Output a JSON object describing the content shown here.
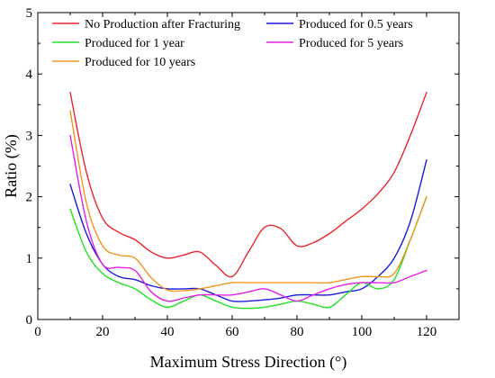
{
  "chart_data": {
    "type": "line",
    "xlabel": "Maximum Stress Direction (°)",
    "ylabel": "Ratio (%)",
    "xlim": [
      0,
      130
    ],
    "ylim": [
      0,
      5
    ],
    "xticks": [
      0,
      20,
      40,
      60,
      80,
      100,
      120
    ],
    "yticks": [
      0,
      1,
      2,
      3,
      4,
      5
    ],
    "legend_position": "top",
    "grid": false,
    "series": [
      {
        "name": "No Production after Fracturing",
        "color": "#e8262a",
        "x": [
          10,
          15,
          20,
          25,
          30,
          35,
          40,
          45,
          50,
          55,
          60,
          65,
          70,
          75,
          80,
          85,
          90,
          95,
          100,
          105,
          110,
          115,
          120
        ],
        "y": [
          3.7,
          2.4,
          1.65,
          1.42,
          1.3,
          1.1,
          1.0,
          1.05,
          1.1,
          0.88,
          0.7,
          1.1,
          1.5,
          1.48,
          1.2,
          1.25,
          1.4,
          1.6,
          1.8,
          2.05,
          2.4,
          3.0,
          3.7
        ]
      },
      {
        "name": "Produced for 0.5 years",
        "color": "#1a1adb",
        "x": [
          10,
          15,
          20,
          25,
          30,
          35,
          40,
          45,
          50,
          55,
          60,
          65,
          70,
          75,
          80,
          85,
          90,
          95,
          100,
          105,
          110,
          115,
          120
        ],
        "y": [
          2.2,
          1.4,
          0.9,
          0.7,
          0.65,
          0.55,
          0.5,
          0.5,
          0.5,
          0.4,
          0.3,
          0.3,
          0.32,
          0.35,
          0.4,
          0.4,
          0.4,
          0.45,
          0.5,
          0.7,
          1.0,
          1.6,
          2.6
        ]
      },
      {
        "name": "Produced for 1 year",
        "color": "#22e022",
        "x": [
          10,
          15,
          20,
          25,
          30,
          35,
          40,
          45,
          50,
          55,
          60,
          65,
          70,
          75,
          80,
          85,
          90,
          95,
          100,
          105,
          110,
          115,
          120
        ],
        "y": [
          1.8,
          1.1,
          0.75,
          0.6,
          0.5,
          0.32,
          0.2,
          0.3,
          0.4,
          0.3,
          0.2,
          0.18,
          0.2,
          0.25,
          0.3,
          0.25,
          0.2,
          0.4,
          0.6,
          0.5,
          0.65,
          1.3,
          2.0
        ]
      },
      {
        "name": "Produced for 5 years",
        "color": "#e61ee6",
        "x": [
          10,
          15,
          20,
          25,
          30,
          35,
          40,
          45,
          50,
          55,
          60,
          65,
          70,
          75,
          80,
          85,
          90,
          95,
          100,
          105,
          110,
          115,
          120
        ],
        "y": [
          3.0,
          1.6,
          0.9,
          0.85,
          0.8,
          0.45,
          0.3,
          0.35,
          0.4,
          0.4,
          0.4,
          0.45,
          0.5,
          0.4,
          0.3,
          0.4,
          0.5,
          0.57,
          0.6,
          0.6,
          0.6,
          0.7,
          0.8
        ]
      },
      {
        "name": "Produced for 10 years",
        "color": "#f0961e",
        "x": [
          10,
          15,
          20,
          25,
          30,
          35,
          40,
          45,
          50,
          55,
          60,
          65,
          70,
          75,
          80,
          85,
          90,
          95,
          100,
          105,
          110,
          115,
          120
        ],
        "y": [
          3.4,
          1.9,
          1.2,
          1.05,
          1.0,
          0.68,
          0.48,
          0.47,
          0.5,
          0.55,
          0.6,
          0.6,
          0.6,
          0.6,
          0.6,
          0.6,
          0.6,
          0.65,
          0.7,
          0.7,
          0.75,
          1.3,
          2.0
        ]
      }
    ]
  }
}
